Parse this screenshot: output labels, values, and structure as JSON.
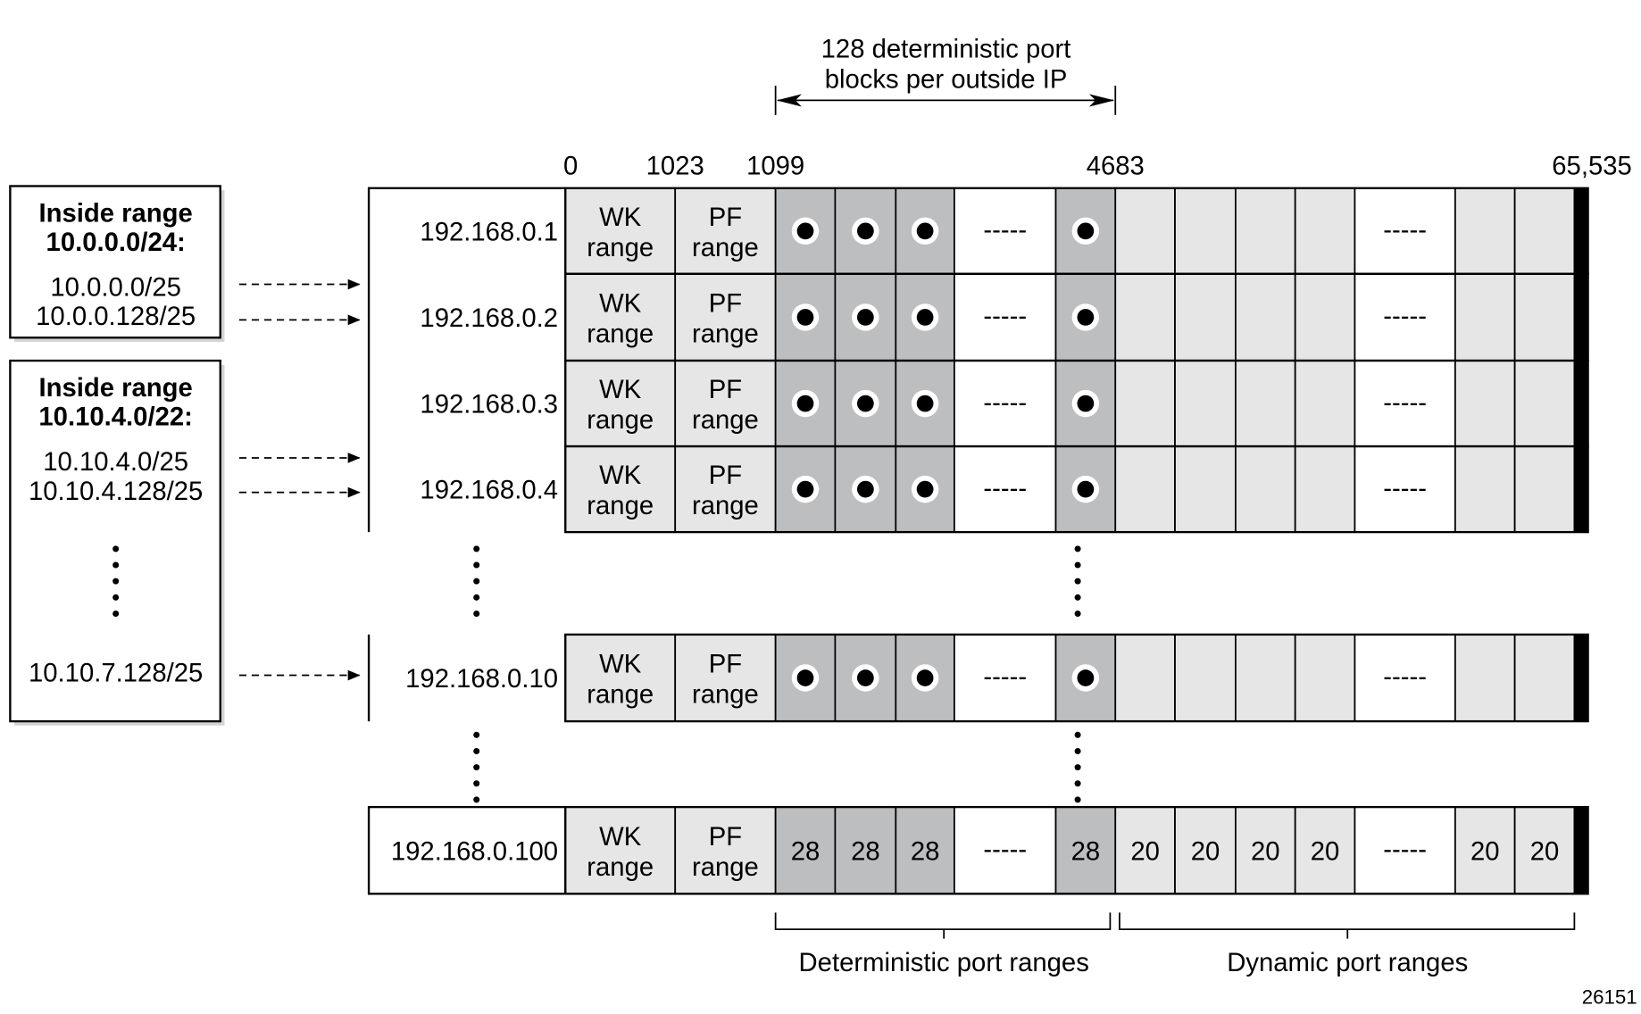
{
  "header": {
    "line1": "128 deterministic port",
    "line2": "blocks per outside IP"
  },
  "port_ticks": {
    "p0": "0",
    "p1023": "1023",
    "p1099": "1099",
    "p4683": "4683",
    "p65535": "65,535"
  },
  "inside_boxes": [
    {
      "title1": "Inside range",
      "title2": "10.0.0.0/24:",
      "subnets": [
        "10.0.0.0/25",
        "10.0.0.128/25"
      ]
    },
    {
      "title1": "Inside range",
      "title2": "10.10.4.0/22:",
      "subnets": [
        "10.10.4.0/25",
        "10.10.4.128/25",
        "10.10.7.128/25"
      ]
    }
  ],
  "cell_labels": {
    "wk1": "WK",
    "wk2": "range",
    "pf1": "PF",
    "pf2": "range",
    "dashes": "-----"
  },
  "rows": [
    {
      "ip": "192.168.0.1",
      "det": "dots",
      "dyn": ""
    },
    {
      "ip": "192.168.0.2",
      "det": "dots",
      "dyn": ""
    },
    {
      "ip": "192.168.0.3",
      "det": "dots",
      "dyn": ""
    },
    {
      "ip": "192.168.0.4",
      "det": "dots",
      "dyn": ""
    },
    {
      "ip": "192.168.0.10",
      "det": "dots",
      "dyn": ""
    },
    {
      "ip": "192.168.0.100",
      "det": "28",
      "dyn": "20"
    }
  ],
  "footer": {
    "deterministic": "Deterministic port ranges",
    "dynamic": "Dynamic port ranges",
    "figure_id": "26151"
  },
  "colors": {
    "light": "#e6e6e6",
    "dark": "#bdbec0",
    "white": "#ffffff",
    "black": "#000000"
  }
}
